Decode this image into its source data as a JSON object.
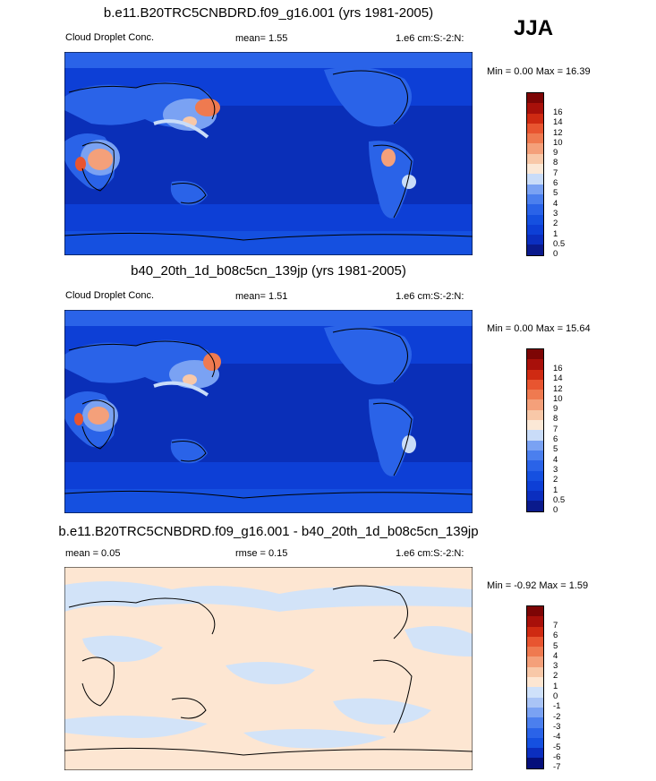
{
  "season": "JJA",
  "panels": [
    {
      "title": "b.e11.B20TRC5CNBDRD.f09_g16.001 (yrs 1981-2005)",
      "left_label": "Cloud Droplet Conc.",
      "mid_label": "mean=   1.55",
      "right_label": "1.e6 cm:S:-2:N:",
      "minmax": "Min =   0.00 Max =  16.39",
      "colorbar_levels": [
        "0",
        "0.5",
        "1",
        "2",
        "3",
        "4",
        "5",
        "6",
        "7",
        "8",
        "9",
        "10",
        "12",
        "14",
        "16"
      ]
    },
    {
      "title": "b40_20th_1d_b08c5cn_139jp (yrs 1981-2005)",
      "left_label": "Cloud Droplet Conc.",
      "mid_label": "mean=   1.51",
      "right_label": "1.e6 cm:S:-2:N:",
      "minmax": "Min =   0.00 Max =  15.64",
      "colorbar_levels": [
        "0",
        "0.5",
        "1",
        "2",
        "3",
        "4",
        "5",
        "6",
        "7",
        "8",
        "9",
        "10",
        "12",
        "14",
        "16"
      ]
    },
    {
      "title": "b.e11.B20TRC5CNBDRD.f09_g16.001 - b40_20th_1d_b08c5cn_139jp",
      "left_label": "mean =    0.05",
      "mid_label": "rmse =    0.15",
      "right_label": "1.e6 cm:S:-2:N:",
      "minmax": "Min =  -0.92 Max =   1.59",
      "colorbar_levels": [
        "-7",
        "-6",
        "-5",
        "-4",
        "-3",
        "-2",
        "-1",
        "0",
        "1",
        "2",
        "3",
        "4",
        "5",
        "6",
        "7"
      ]
    }
  ],
  "colors": {
    "abs_scale": [
      "#0a1a8c",
      "#0b2ebf",
      "#0d3fd6",
      "#1550e0",
      "#2a63e8",
      "#4b7fee",
      "#7aa2f3",
      "#c9dcf8",
      "#fbe8d6",
      "#f8c8a8",
      "#f4a07a",
      "#ef7a50",
      "#e85530",
      "#cf2a12",
      "#a8100a",
      "#7d0505"
    ],
    "diff_scale": [
      "#050f7a",
      "#0b2ebf",
      "#1550e0",
      "#2a63e8",
      "#4b7fee",
      "#7aa2f3",
      "#a9c4f6",
      "#cfe1fa",
      "#fde6d2",
      "#f8c8a8",
      "#f4a07a",
      "#ef7a50",
      "#e85530",
      "#cf2a12",
      "#a8100a",
      "#7d0505"
    ],
    "ocean_abs": "#0d3fd6",
    "ocean_deep": "#0a2fb8",
    "diff_bg": "#fde6d2",
    "diff_blue": "#d2e3f8"
  }
}
